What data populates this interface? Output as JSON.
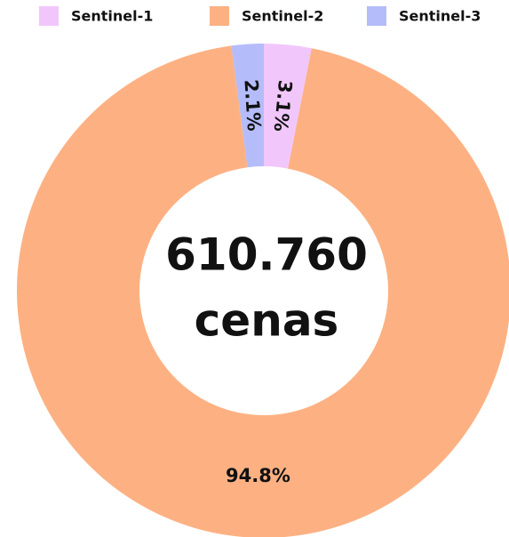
{
  "chart_data": {
    "type": "donut",
    "categories": [
      "Sentinel-1",
      "Sentinel-2",
      "Sentinel-3"
    ],
    "values": [
      3.1,
      94.8,
      2.1
    ],
    "value_labels": [
      "3.1%",
      "94.8%",
      "2.1%"
    ],
    "colors": [
      "#f1c7fb",
      "#fdb183",
      "#b5bcfa"
    ],
    "legend": "top",
    "annotations": [
      "610.760",
      "cenas"
    ]
  }
}
